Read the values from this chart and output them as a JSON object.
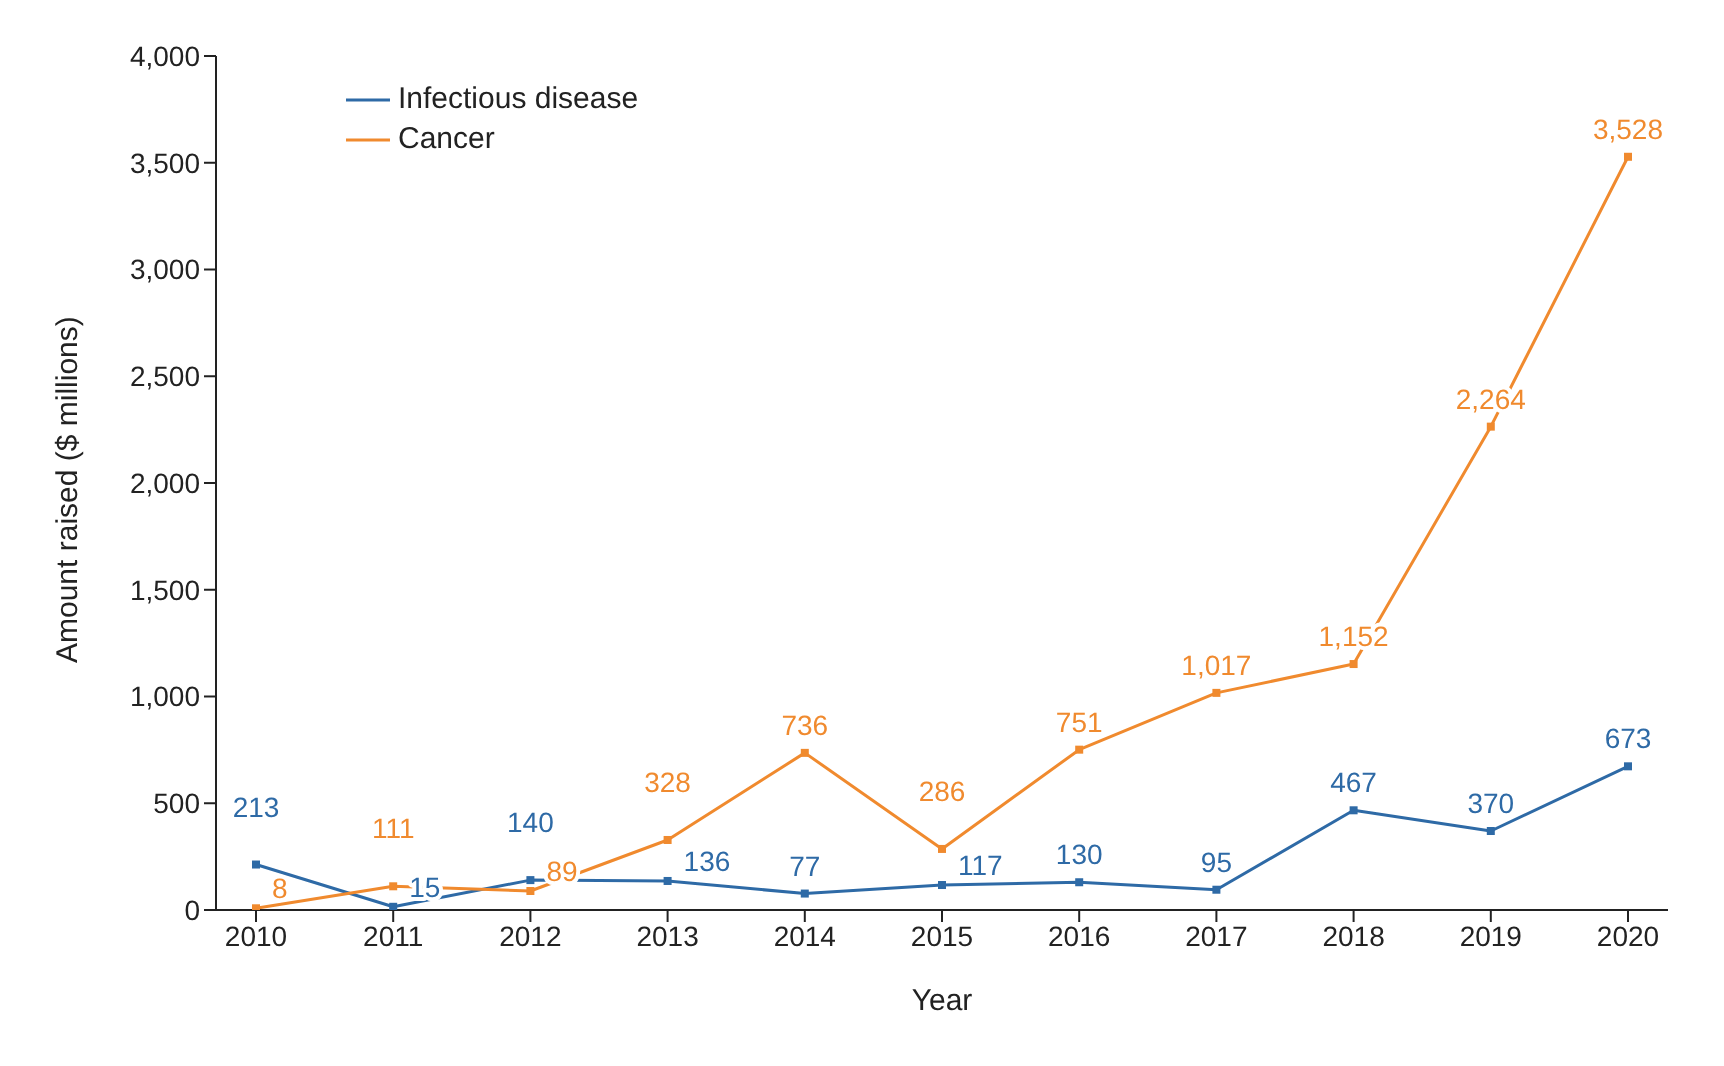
{
  "chart_data": {
    "type": "line",
    "xlabel": "Year",
    "ylabel": "Amount raised ($ millions)",
    "categories": [
      "2010",
      "2011",
      "2012",
      "2013",
      "2014",
      "2015",
      "2016",
      "2017",
      "2018",
      "2019",
      "2020"
    ],
    "series": [
      {
        "name": "Infectious disease",
        "color": "#2e6aa6",
        "values": [
          213,
          15,
          140,
          136,
          77,
          117,
          130,
          95,
          467,
          370,
          673
        ],
        "value_labels": [
          "213",
          "15",
          "140",
          "136",
          "77",
          "117",
          "130",
          "95",
          "467",
          "370",
          "673"
        ]
      },
      {
        "name": "Cancer",
        "color": "#f08a2e",
        "values": [
          8,
          111,
          89,
          328,
          736,
          286,
          751,
          1017,
          1152,
          2264,
          3528
        ],
        "value_labels": [
          "8",
          "111",
          "89",
          "328",
          "736",
          "286",
          "751",
          "1,017",
          "1,152",
          "2,264",
          "3,528"
        ]
      }
    ],
    "ylim": [
      0,
      4000
    ],
    "yticks": [
      0,
      {
        "value": 500,
        "label": "500"
      },
      {
        "value": 1000,
        "label": "1,000"
      },
      {
        "value": 1500,
        "label": "1,500"
      },
      {
        "value": 2000,
        "label": "2,000"
      },
      {
        "value": 2500,
        "label": "2,500"
      },
      {
        "value": 3000,
        "label": "3,000"
      },
      {
        "value": 3500,
        "label": "3,500"
      },
      {
        "value": 4000,
        "label": "4,000"
      }
    ],
    "grid": false,
    "legend": "top left",
    "marker": "square",
    "line_style": "solid"
  }
}
